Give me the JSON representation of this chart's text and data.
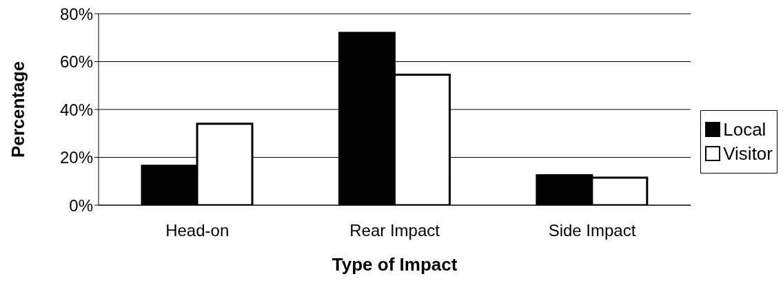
{
  "chart_data": {
    "type": "bar",
    "xlabel": "Type of Impact",
    "ylabel": "Percentage",
    "categories": [
      "Head-on",
      "Rear Impact",
      "Side Impact"
    ],
    "series": [
      {
        "name": "Local",
        "color": "#000000",
        "values": [
          16.5,
          72,
          12.5
        ]
      },
      {
        "name": "Visitor",
        "color": "#ffffff",
        "values": [
          34,
          54.5,
          11.5
        ]
      }
    ],
    "ylim": [
      0,
      80
    ],
    "yticks": [
      {
        "value": 0,
        "label": "0%"
      },
      {
        "value": 20,
        "label": "20%"
      },
      {
        "value": 40,
        "label": "40%"
      },
      {
        "value": 60,
        "label": "60%"
      },
      {
        "value": 80,
        "label": "80%"
      }
    ],
    "grid": "y",
    "legend": "right"
  }
}
